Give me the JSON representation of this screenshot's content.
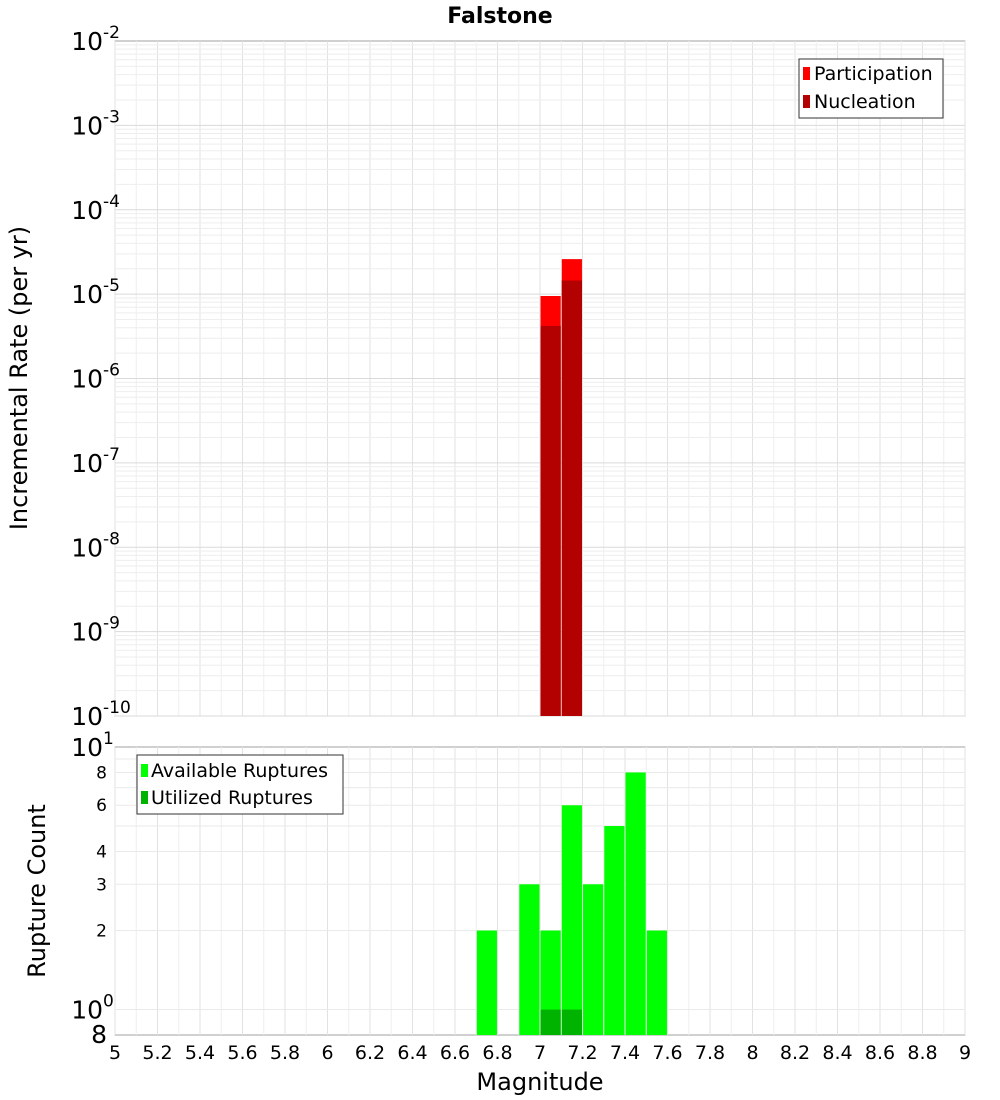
{
  "chart_data": [
    {
      "type": "bar",
      "title": "Falstone",
      "xlabel": "",
      "ylabel": "Incremental Rate (per yr)",
      "yscale": "log",
      "xlim": [
        5,
        9
      ],
      "ylim": [
        1e-10,
        0.01
      ],
      "y_ticks": [
        {
          "base": "10",
          "exp": "-2"
        },
        {
          "base": "10",
          "exp": "-3"
        },
        {
          "base": "10",
          "exp": "-4"
        },
        {
          "base": "10",
          "exp": "-5"
        },
        {
          "base": "10",
          "exp": "-6"
        },
        {
          "base": "10",
          "exp": "-7"
        },
        {
          "base": "10",
          "exp": "-8"
        },
        {
          "base": "10",
          "exp": "-9"
        },
        {
          "base": "10",
          "exp": "-10"
        }
      ],
      "grid": true,
      "legend_position": "top-right",
      "bar_width": 0.095,
      "series": [
        {
          "name": "Participation",
          "color": "#ff0000",
          "x": [
            7.05,
            7.15
          ],
          "values": [
            9.5e-06,
            2.6e-05
          ]
        },
        {
          "name": "Nucleation",
          "color": "#b30000",
          "x": [
            7.05,
            7.15
          ],
          "values": [
            4.2e-06,
            1.45e-05
          ]
        }
      ]
    },
    {
      "type": "bar",
      "title": "",
      "xlabel": "Magnitude",
      "ylabel": "Rupture Count",
      "yscale": "log",
      "xlim": [
        5,
        9
      ],
      "ylim": [
        0.8,
        10
      ],
      "x_ticks": [
        "5",
        "5.2",
        "5.4",
        "5.6",
        "5.8",
        "6",
        "6.2",
        "6.4",
        "6.6",
        "6.8",
        "7",
        "7.2",
        "7.4",
        "7.6",
        "7.8",
        "8",
        "8.2",
        "8.4",
        "8.6",
        "8.8",
        "9"
      ],
      "y_ticks_minor": [
        "8",
        "6",
        "4",
        "3",
        "2"
      ],
      "y_tick_top": {
        "base": "10",
        "exp": "1"
      },
      "y_tick_bottom": {
        "base": "10",
        "exp": "0"
      },
      "y_tick_floor": "8",
      "grid": true,
      "legend_position": "top-left",
      "bar_width": 0.095,
      "series": [
        {
          "name": "Available Ruptures",
          "color": "#00ff00",
          "x": [
            6.75,
            6.95,
            7.05,
            7.15,
            7.25,
            7.35,
            7.45,
            7.55
          ],
          "values": [
            2,
            3,
            2,
            6,
            3,
            5,
            8,
            2
          ]
        },
        {
          "name": "Utilized Ruptures",
          "color": "#00b300",
          "x": [
            7.05,
            7.15
          ],
          "values": [
            1,
            1
          ]
        }
      ]
    }
  ]
}
